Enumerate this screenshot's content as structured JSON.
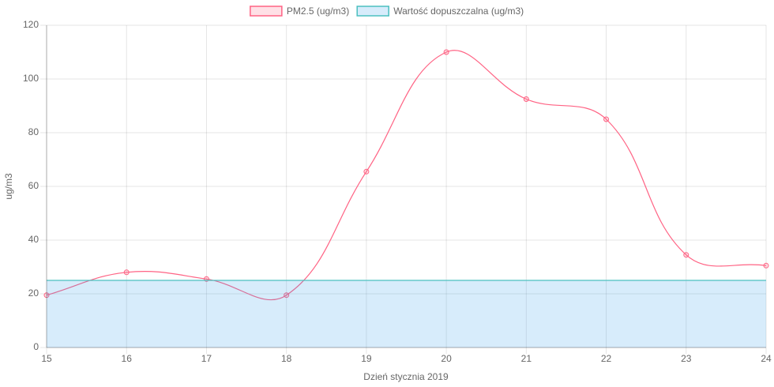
{
  "chart_data": {
    "type": "line",
    "x": [
      15,
      16,
      17,
      18,
      19,
      20,
      21,
      22,
      23,
      24
    ],
    "xlim": [
      15,
      24
    ],
    "xticks": [
      15,
      16,
      17,
      18,
      19,
      20,
      21,
      22,
      23,
      24
    ],
    "ylim": [
      0,
      120
    ],
    "yticks": [
      0,
      20,
      40,
      60,
      80,
      100,
      120
    ],
    "x_label": "Dzień stycznia 2019",
    "y_label": "ug/m3",
    "grid": true,
    "legend": "top",
    "series": [
      {
        "name": "PM2.5 (ug/m3)",
        "color": "#ff6384",
        "fill_color": "rgba(255,99,132,0.2)",
        "fill": false,
        "points": true,
        "values": [
          19.5,
          28,
          25.5,
          19.5,
          65.5,
          110,
          92.5,
          85,
          34.5,
          30.5
        ]
      },
      {
        "name": "Wartość dopuszczalna (ug/m3)",
        "color": "#4bc0c0",
        "fill_color": "rgba(54,162,235,0.2)",
        "fill": true,
        "points": false,
        "values": [
          25,
          25,
          25,
          25,
          25,
          25,
          25,
          25,
          25,
          25
        ]
      }
    ]
  }
}
